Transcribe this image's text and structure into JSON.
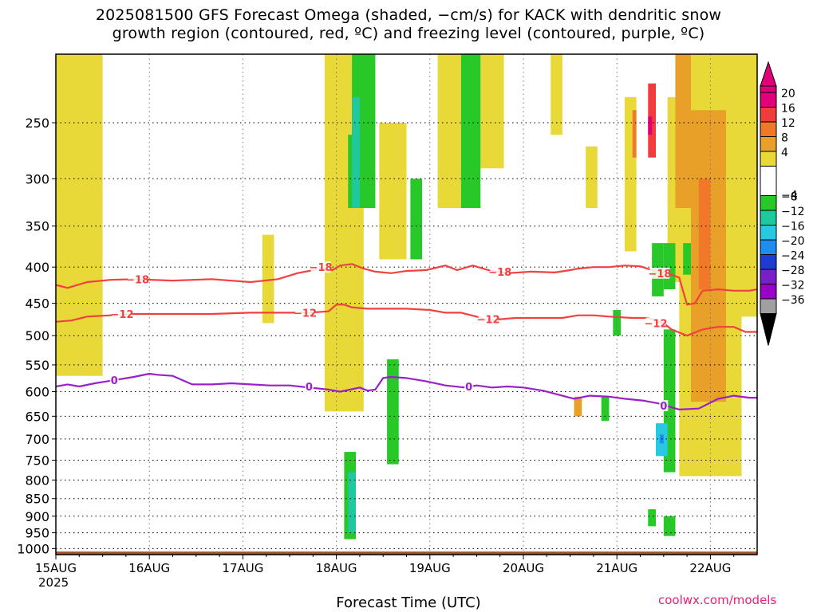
{
  "chart_data": {
    "type": "heatmap",
    "title_line1": "2025081500 GFS Forecast Omega (shaded, −cm/s) for KACK with dendritic snow",
    "title_line2": "growth region (contoured, red, ºC) and freezing level (contoured, purple, ºC)",
    "xlabel": "Forecast Time (UTC)",
    "year_label": "2025",
    "credit": "coolwx.com/models",
    "x_ticks": [
      "15AUG",
      "16AUG",
      "17AUG",
      "18AUG",
      "19AUG",
      "20AUG",
      "21AUG",
      "22AUG"
    ],
    "x_range_hours": [
      0,
      180
    ],
    "y_ticks": [
      250,
      300,
      350,
      400,
      450,
      500,
      550,
      600,
      650,
      700,
      750,
      800,
      850,
      900,
      950,
      1000
    ],
    "y_range_hpa": [
      200,
      1020
    ],
    "y_scale": "log",
    "grid": true,
    "colorbar": {
      "labels": [
        "20",
        "16",
        "12",
        "8",
        "4",
        "−4",
        "−8",
        "−12",
        "−16",
        "−20",
        "−24",
        "−28",
        "−32",
        "−36"
      ],
      "colors": [
        "#e0007a",
        "#f03c3c",
        "#f07828",
        "#e8a028",
        "#e8d838",
        "#ffffff",
        "#28c828",
        "#20c8a0",
        "#28c8e0",
        "#1e8cf0",
        "#1e3cd2",
        "#7820c8",
        "#9b00c8",
        "#a0a0a0"
      ],
      "top_arrow_color": "#e0007a",
      "bottom_arrow_color": "#000000"
    },
    "omega_regions": [
      {
        "value": 4,
        "color": "#e8d838",
        "x0": 0,
        "x1": 12,
        "p0": 200,
        "p1": 570
      },
      {
        "value": 4,
        "color": "#e8d838",
        "x0": 53,
        "x1": 56,
        "p0": 360,
        "p1": 480
      },
      {
        "value": 4,
        "color": "#e8d838",
        "x0": 69,
        "x1": 79,
        "p0": 200,
        "p1": 640
      },
      {
        "value": 4,
        "color": "#e8d838",
        "x0": 83,
        "x1": 90,
        "p0": 250,
        "p1": 390
      },
      {
        "value": 4,
        "color": "#e8d838",
        "x0": 98,
        "x1": 104,
        "p0": 200,
        "p1": 330
      },
      {
        "value": 4,
        "color": "#e8d838",
        "x0": 109,
        "x1": 115,
        "p0": 200,
        "p1": 290
      },
      {
        "value": 4,
        "color": "#e8d838",
        "x0": 127,
        "x1": 130,
        "p0": 200,
        "p1": 260
      },
      {
        "value": 4,
        "color": "#e8d838",
        "x0": 136,
        "x1": 139,
        "p0": 270,
        "p1": 330
      },
      {
        "value": 4,
        "color": "#e8d838",
        "x0": 146,
        "x1": 149,
        "p0": 230,
        "p1": 380
      },
      {
        "value": 4,
        "color": "#e8d838",
        "x0": 157,
        "x1": 163,
        "p0": 230,
        "p1": 420
      },
      {
        "value": 4,
        "color": "#e8d838",
        "x0": 160,
        "x1": 176,
        "p0": 200,
        "p1": 790
      },
      {
        "value": 4,
        "color": "#e8d838",
        "x0": 170,
        "x1": 180,
        "p0": 200,
        "p1": 470
      },
      {
        "value": 8,
        "color": "#e8a028",
        "x0": 159,
        "x1": 163,
        "p0": 200,
        "p1": 330
      },
      {
        "value": 8,
        "color": "#e8a028",
        "x0": 163,
        "x1": 172,
        "p0": 240,
        "p1": 620
      },
      {
        "value": 8,
        "color": "#e8a028",
        "x0": 133,
        "x1": 135,
        "p0": 610,
        "p1": 650
      },
      {
        "value": 12,
        "color": "#f07828",
        "x0": 165,
        "x1": 168,
        "p0": 300,
        "p1": 430
      },
      {
        "value": 12,
        "color": "#f07828",
        "x0": 148,
        "x1": 149,
        "p0": 240,
        "p1": 280
      },
      {
        "value": 16,
        "color": "#f03c3c",
        "x0": 152,
        "x1": 154,
        "p0": 220,
        "p1": 280
      },
      {
        "value": 20,
        "color": "#e0007a",
        "x0": 152,
        "x1": 153,
        "p0": 245,
        "p1": 260
      },
      {
        "value": -4,
        "color": "#28c828",
        "x0": 75,
        "x1": 77,
        "p0": 260,
        "p1": 330
      },
      {
        "value": -4,
        "color": "#28c828",
        "x0": 76,
        "x1": 82,
        "p0": 200,
        "p1": 330
      },
      {
        "value": -4,
        "color": "#28c828",
        "x0": 85,
        "x1": 88,
        "p0": 540,
        "p1": 760
      },
      {
        "value": -4,
        "color": "#28c828",
        "x0": 91,
        "x1": 94,
        "p0": 300,
        "p1": 390
      },
      {
        "value": -4,
        "color": "#28c828",
        "x0": 104,
        "x1": 109,
        "p0": 200,
        "p1": 330
      },
      {
        "value": -4,
        "color": "#28c828",
        "x0": 156,
        "x1": 159,
        "p0": 370,
        "p1": 430
      },
      {
        "value": -4,
        "color": "#28c828",
        "x0": 156,
        "x1": 159,
        "p0": 490,
        "p1": 780
      },
      {
        "value": -4,
        "color": "#28c828",
        "x0": 153,
        "x1": 156,
        "p0": 370,
        "p1": 440
      },
      {
        "value": -4,
        "color": "#28c828",
        "x0": 140,
        "x1": 142,
        "p0": 610,
        "p1": 660
      },
      {
        "value": -4,
        "color": "#28c828",
        "x0": 143,
        "x1": 145,
        "p0": 460,
        "p1": 500
      },
      {
        "value": -4,
        "color": "#28c828",
        "x0": 161,
        "x1": 163,
        "p0": 370,
        "p1": 410
      },
      {
        "value": -4,
        "color": "#28c828",
        "x0": 152,
        "x1": 154,
        "p0": 880,
        "p1": 930
      },
      {
        "value": -4,
        "color": "#28c828",
        "x0": 156,
        "x1": 159,
        "p0": 900,
        "p1": 960
      },
      {
        "value": -4,
        "color": "#28c828",
        "x0": 74,
        "x1": 77,
        "p0": 730,
        "p1": 970
      },
      {
        "value": -8,
        "color": "#20c8a0",
        "x0": 76,
        "x1": 78,
        "p0": 230,
        "p1": 330
      },
      {
        "value": -8,
        "color": "#20c8a0",
        "x0": 75,
        "x1": 77,
        "p0": 780,
        "p1": 950
      },
      {
        "value": -12,
        "color": "#28c8e0",
        "x0": 154,
        "x1": 157,
        "p0": 665,
        "p1": 740
      },
      {
        "value": -16,
        "color": "#1e8cf0",
        "x0": 155,
        "x1": 156,
        "p0": 690,
        "p1": 710
      }
    ],
    "contours": [
      {
        "level": -18,
        "label": "−18",
        "color": "#f04040",
        "points": [
          [
            0,
            424
          ],
          [
            3,
            428
          ],
          [
            8,
            420
          ],
          [
            14,
            417
          ],
          [
            20,
            416
          ],
          [
            30,
            418
          ],
          [
            40,
            416
          ],
          [
            50,
            420
          ],
          [
            57,
            416
          ],
          [
            62,
            408
          ],
          [
            68,
            402
          ],
          [
            71,
            404
          ],
          [
            73,
            398
          ],
          [
            76,
            396
          ],
          [
            79,
            402
          ],
          [
            82,
            406
          ],
          [
            86,
            408
          ],
          [
            90,
            405
          ],
          [
            95,
            404
          ],
          [
            100,
            398
          ],
          [
            103,
            404
          ],
          [
            107,
            398
          ],
          [
            111,
            404
          ],
          [
            116,
            408
          ],
          [
            122,
            406
          ],
          [
            128,
            407
          ],
          [
            132,
            404
          ],
          [
            134,
            402
          ],
          [
            138,
            400
          ],
          [
            142,
            400
          ],
          [
            146,
            398
          ],
          [
            150,
            399
          ],
          [
            153,
            404
          ],
          [
            157,
            408
          ],
          [
            160,
            414
          ],
          [
            162,
            452
          ],
          [
            164,
            450
          ],
          [
            166,
            432
          ],
          [
            170,
            430
          ],
          [
            174,
            432
          ],
          [
            178,
            432
          ],
          [
            180,
            430
          ]
        ]
      },
      {
        "level": -12,
        "label": "−12",
        "color": "#f04040",
        "points": [
          [
            0,
            478
          ],
          [
            4,
            476
          ],
          [
            8,
            470
          ],
          [
            14,
            468
          ],
          [
            20,
            466
          ],
          [
            30,
            466
          ],
          [
            40,
            466
          ],
          [
            50,
            464
          ],
          [
            58,
            464
          ],
          [
            65,
            464
          ],
          [
            70,
            462
          ],
          [
            72,
            452
          ],
          [
            74,
            452
          ],
          [
            76,
            456
          ],
          [
            80,
            458
          ],
          [
            90,
            458
          ],
          [
            96,
            460
          ],
          [
            100,
            464
          ],
          [
            104,
            464
          ],
          [
            108,
            470
          ],
          [
            111,
            476
          ],
          [
            114,
            474
          ],
          [
            118,
            472
          ],
          [
            124,
            472
          ],
          [
            130,
            472
          ],
          [
            134,
            468
          ],
          [
            138,
            468
          ],
          [
            142,
            470
          ],
          [
            148,
            472
          ],
          [
            152,
            472
          ],
          [
            156,
            480
          ],
          [
            158,
            490
          ],
          [
            162,
            500
          ],
          [
            166,
            490
          ],
          [
            170,
            486
          ],
          [
            174,
            486
          ],
          [
            177,
            494
          ],
          [
            180,
            494
          ]
        ]
      },
      {
        "level": 0,
        "label": "0",
        "color": "#9a20c8",
        "points": [
          [
            0,
            590
          ],
          [
            3,
            586
          ],
          [
            6,
            590
          ],
          [
            10,
            584
          ],
          [
            15,
            578
          ],
          [
            20,
            572
          ],
          [
            24,
            566
          ],
          [
            26,
            568
          ],
          [
            30,
            570
          ],
          [
            35,
            586
          ],
          [
            40,
            586
          ],
          [
            45,
            584
          ],
          [
            50,
            586
          ],
          [
            55,
            588
          ],
          [
            60,
            588
          ],
          [
            65,
            592
          ],
          [
            70,
            596
          ],
          [
            73,
            600
          ],
          [
            78,
            592
          ],
          [
            80,
            598
          ],
          [
            82,
            596
          ],
          [
            84,
            574
          ],
          [
            86,
            572
          ],
          [
            90,
            574
          ],
          [
            95,
            580
          ],
          [
            100,
            588
          ],
          [
            105,
            592
          ],
          [
            108,
            588
          ],
          [
            112,
            592
          ],
          [
            116,
            590
          ],
          [
            120,
            592
          ],
          [
            125,
            598
          ],
          [
            129,
            606
          ],
          [
            133,
            614
          ],
          [
            137,
            608
          ],
          [
            142,
            610
          ],
          [
            146,
            614
          ],
          [
            151,
            618
          ],
          [
            155,
            624
          ],
          [
            160,
            636
          ],
          [
            165,
            634
          ],
          [
            170,
            614
          ],
          [
            174,
            608
          ],
          [
            178,
            612
          ],
          [
            180,
            612
          ]
        ]
      }
    ],
    "contour_labels": [
      {
        "text": "−18",
        "x": 21,
        "p": 416
      },
      {
        "text": "−18",
        "x": 68,
        "p": 400
      },
      {
        "text": "−18",
        "x": 114,
        "p": 406
      },
      {
        "text": "−18",
        "x": 155,
        "p": 408
      },
      {
        "text": "−12",
        "x": 17,
        "p": 466
      },
      {
        "text": "−12",
        "x": 64,
        "p": 464
      },
      {
        "text": "−12",
        "x": 111,
        "p": 474
      },
      {
        "text": "−12",
        "x": 154,
        "p": 480
      },
      {
        "text": "0",
        "x": 15,
        "p": 578
      },
      {
        "text": "0",
        "x": 65,
        "p": 590
      },
      {
        "text": "0",
        "x": 106,
        "p": 590
      },
      {
        "text": "0",
        "x": 156,
        "p": 628
      }
    ],
    "surface": {
      "color": "#a0522d",
      "p_top": 1010
    }
  }
}
